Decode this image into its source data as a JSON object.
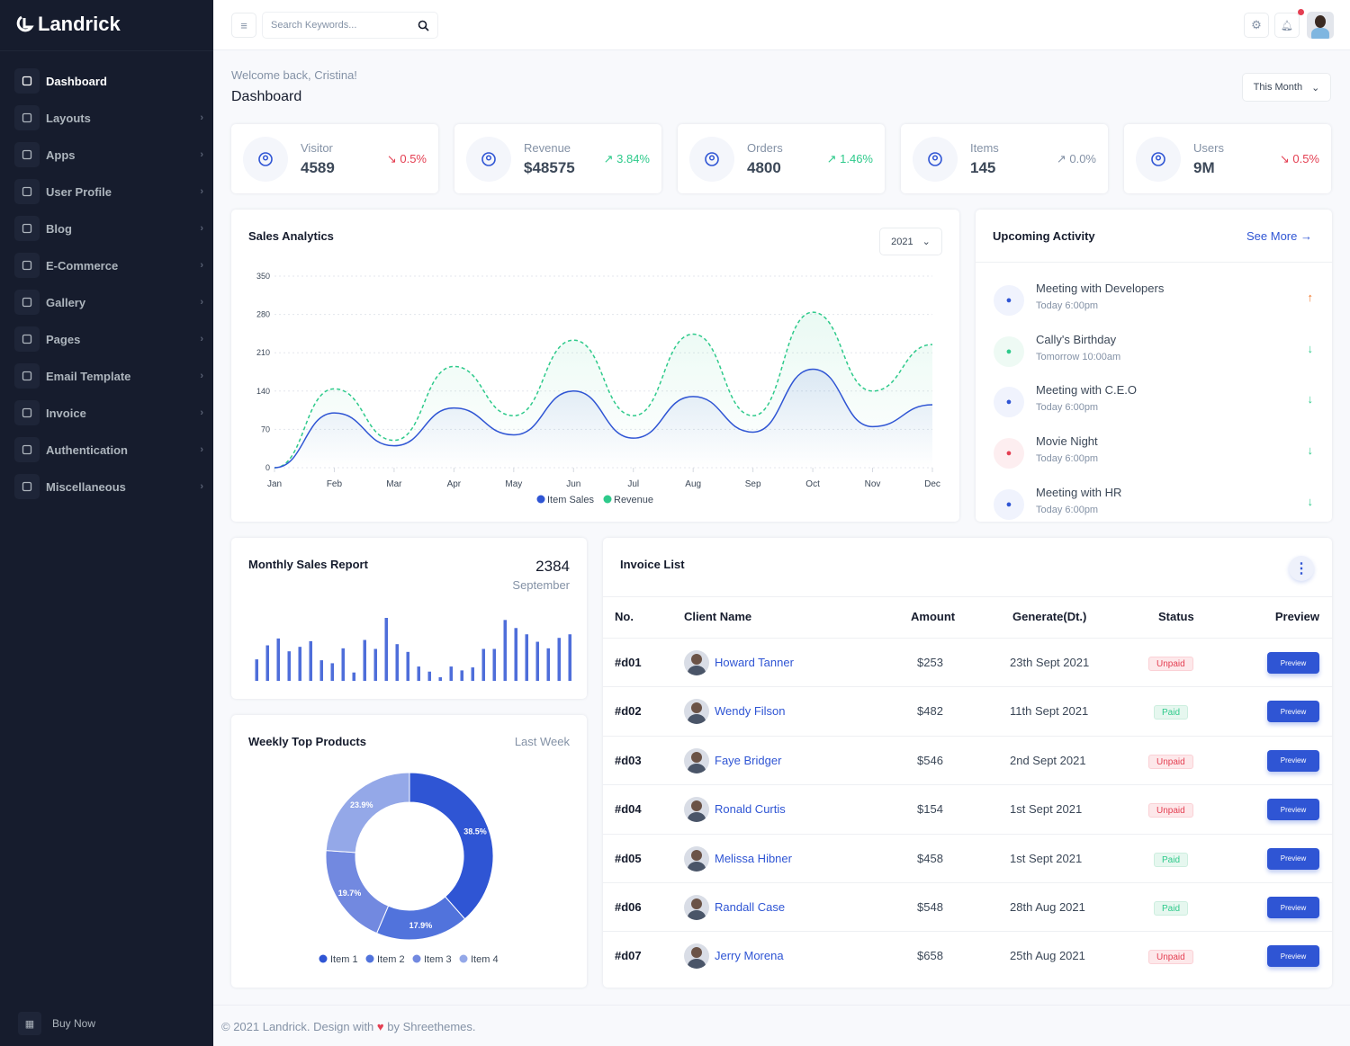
{
  "brand": {
    "name": "Landrick"
  },
  "sidebar": {
    "items": [
      {
        "label": "Dashboard",
        "icon": "home-icon",
        "active": true
      },
      {
        "label": "Layouts",
        "icon": "layout-icon"
      },
      {
        "label": "Apps",
        "icon": "apps-icon"
      },
      {
        "label": "User Profile",
        "icon": "user-icon"
      },
      {
        "label": "Blog",
        "icon": "clock-icon"
      },
      {
        "label": "E-Commerce",
        "icon": "cart-icon"
      },
      {
        "label": "Gallery",
        "icon": "camera-icon"
      },
      {
        "label": "Pages",
        "icon": "file-icon"
      },
      {
        "label": "Email Template",
        "icon": "mail-icon"
      },
      {
        "label": "Invoice",
        "icon": "invoice-icon"
      },
      {
        "label": "Authentication",
        "icon": "login-icon"
      },
      {
        "label": "Miscellaneous",
        "icon": "clipboard-icon"
      }
    ],
    "buy_now": "Buy Now"
  },
  "header": {
    "search_placeholder": "Search Keywords...",
    "notification_dot": true
  },
  "page": {
    "welcome": "Welcome back, Cristina!",
    "title": "Dashboard",
    "period": "This Month"
  },
  "stats": [
    {
      "label": "Visitor",
      "value": "4589",
      "change": "0.5%",
      "trend": "down",
      "icon": "user-circle-icon"
    },
    {
      "label": "Revenue",
      "value": "$48575",
      "change": "3.84%",
      "trend": "up",
      "icon": "dollar-icon"
    },
    {
      "label": "Orders",
      "value": "4800",
      "change": "1.46%",
      "trend": "up",
      "icon": "bag-icon"
    },
    {
      "label": "Items",
      "value": "145",
      "change": "0.0%",
      "trend": "flat",
      "icon": "store-icon"
    },
    {
      "label": "Users",
      "value": "9M",
      "change": "0.5%",
      "trend": "down",
      "icon": "users-icon"
    }
  ],
  "sales": {
    "title": "Sales Analytics",
    "year": "2021"
  },
  "chart_data": [
    {
      "type": "area",
      "title": "Sales Analytics",
      "categories": [
        "Jan",
        "Feb",
        "Mar",
        "Apr",
        "May",
        "Jun",
        "Jul",
        "Aug",
        "Sep",
        "Oct",
        "Nov",
        "Dec"
      ],
      "yticks": [
        0,
        70,
        140,
        210,
        280,
        350
      ],
      "ylim": [
        0,
        350
      ],
      "grid": true,
      "legend": "bottom",
      "series": [
        {
          "name": "Item Sales",
          "color": "#2f55d4",
          "values": [
            0,
            100,
            40,
            109,
            60,
            140,
            54,
            130,
            65,
            180,
            75,
            115
          ]
        },
        {
          "name": "Revenue",
          "color": "#2eca8b",
          "dashed": true,
          "values": [
            0,
            144,
            50,
            185,
            95,
            233,
            95,
            244,
            95,
            284,
            140,
            225
          ]
        }
      ]
    },
    {
      "type": "bar",
      "title": "Monthly Sales Report",
      "color": "#2f55d4",
      "values": [
        72,
        119,
        142,
        99,
        114,
        133,
        69,
        59,
        109,
        28,
        137,
        107,
        211,
        123,
        97,
        48,
        31,
        12,
        48,
        35,
        45,
        107,
        107,
        204,
        177,
        156,
        131,
        109,
        144,
        156
      ]
    },
    {
      "type": "pie",
      "title": "Weekly Top Products",
      "donut": true,
      "legend": "bottom",
      "categories": [
        "Item 1",
        "Item 2",
        "Item 3",
        "Item 4"
      ],
      "values": [
        38.5,
        17.9,
        19.7,
        23.9
      ],
      "labels": [
        "38.5%",
        "17.9%",
        "19.7%",
        "23.9%"
      ],
      "colors": [
        "#2f55d4",
        "#5173dc",
        "#7289e0",
        "#94a8e8"
      ]
    }
  ],
  "monthly": {
    "title": "Monthly Sales Report",
    "total": "2384",
    "month": "September"
  },
  "weekly": {
    "title": "Weekly Top Products",
    "period": "Last Week"
  },
  "activity": {
    "title": "Upcoming Activity",
    "see_more": "See More",
    "items": [
      {
        "title": "Meeting with Developers",
        "time": "Today 6:00pm",
        "icon": "users-icon",
        "trend": "up"
      },
      {
        "title": "Cally's Birthday",
        "time": "Tomorrow 10:00am",
        "icon": "gift-icon",
        "trend": "down"
      },
      {
        "title": "Meeting with C.E.O",
        "time": "Today 6:00pm",
        "icon": "users-icon",
        "trend": "down"
      },
      {
        "title": "Movie Night",
        "time": "Today 6:00pm",
        "icon": "video-icon",
        "trend": "down"
      },
      {
        "title": "Meeting with HR",
        "time": "Today 6:00pm",
        "icon": "users-icon",
        "trend": "down"
      }
    ]
  },
  "invoice": {
    "title": "Invoice List",
    "columns": [
      "No.",
      "Client Name",
      "Amount",
      "Generate(Dt.)",
      "Status",
      "Preview"
    ],
    "preview_label": "Preview",
    "rows": [
      {
        "no": "#d01",
        "client": "Howard Tanner",
        "amount": "$253",
        "date": "23th Sept 2021",
        "status": "Unpaid"
      },
      {
        "no": "#d02",
        "client": "Wendy Filson",
        "amount": "$482",
        "date": "11th Sept 2021",
        "status": "Paid"
      },
      {
        "no": "#d03",
        "client": "Faye Bridger",
        "amount": "$546",
        "date": "2nd Sept 2021",
        "status": "Unpaid"
      },
      {
        "no": "#d04",
        "client": "Ronald Curtis",
        "amount": "$154",
        "date": "1st Sept 2021",
        "status": "Unpaid"
      },
      {
        "no": "#d05",
        "client": "Melissa Hibner",
        "amount": "$458",
        "date": "1st Sept 2021",
        "status": "Paid"
      },
      {
        "no": "#d06",
        "client": "Randall Case",
        "amount": "$548",
        "date": "28th Aug 2021",
        "status": "Paid"
      },
      {
        "no": "#d07",
        "client": "Jerry Morena",
        "amount": "$658",
        "date": "25th Aug 2021",
        "status": "Unpaid"
      }
    ]
  },
  "footer": {
    "text_before": "© 2021 Landrick. Design with",
    "text_after": "by Shreethemes."
  },
  "colors": {
    "primary": "#2f55d4",
    "success": "#2eca8b",
    "danger": "#e43f52",
    "warning": "#f17425",
    "sidebar": "#161c2d"
  }
}
